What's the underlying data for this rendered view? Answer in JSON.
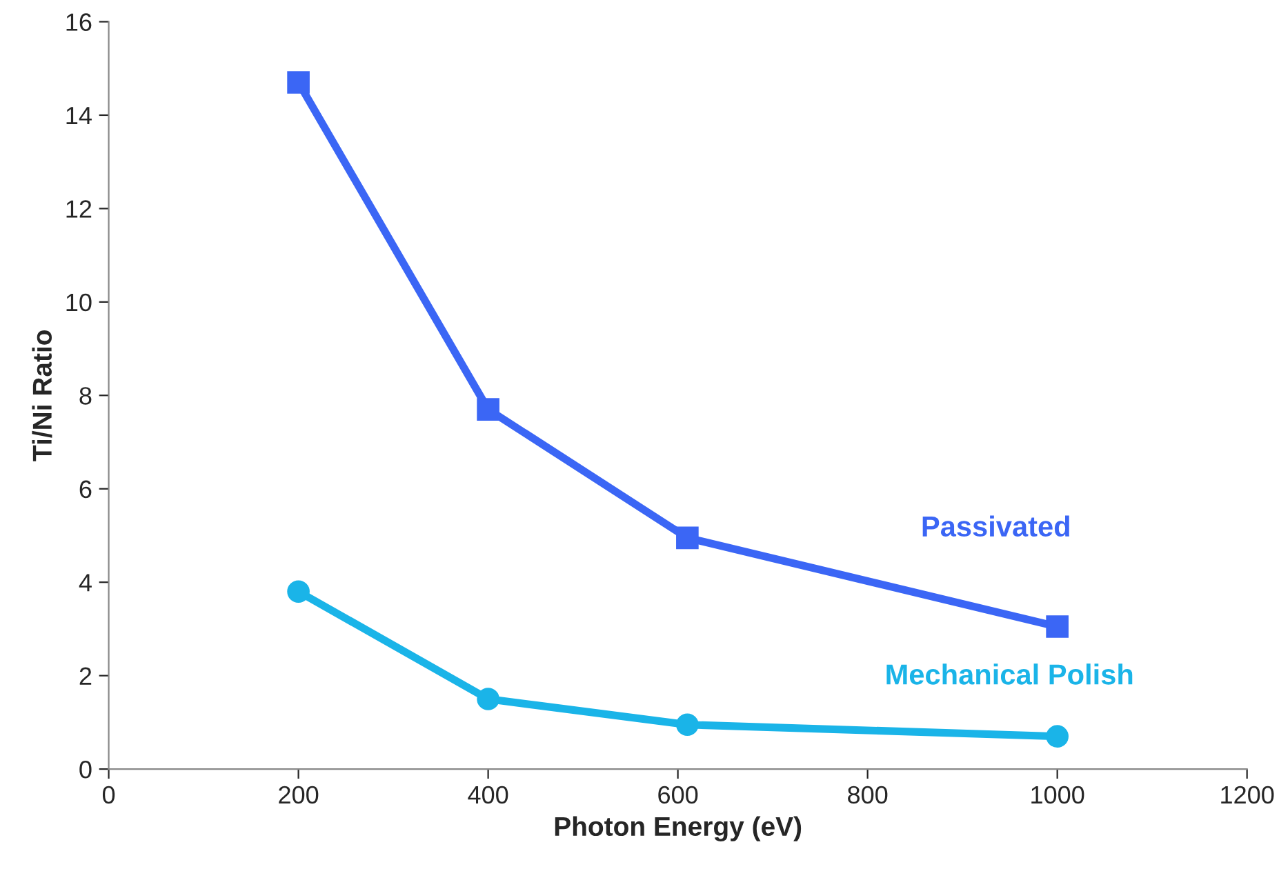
{
  "chart_data": {
    "type": "line",
    "xlabel": "Photon Energy (eV)",
    "ylabel": "Ti/Ni Ratio",
    "x": [
      200,
      400,
      610,
      1000
    ],
    "series": [
      {
        "name": "Passivated",
        "color": "#3b66f5",
        "marker": "square",
        "values": [
          14.7,
          7.7,
          4.95,
          3.05
        ]
      },
      {
        "name": "Mechanical Polish",
        "color": "#1ab4e8",
        "marker": "circle",
        "values": [
          3.8,
          1.5,
          0.95,
          0.7
        ]
      }
    ],
    "xlim": [
      0,
      1200
    ],
    "xticks": [
      0,
      200,
      400,
      600,
      800,
      1000,
      1200
    ],
    "ylim": [
      0,
      16
    ],
    "yticks": [
      0,
      2,
      4,
      6,
      8,
      10,
      12,
      14,
      16
    ],
    "grid": false,
    "legend": false,
    "line_style": "solid"
  }
}
